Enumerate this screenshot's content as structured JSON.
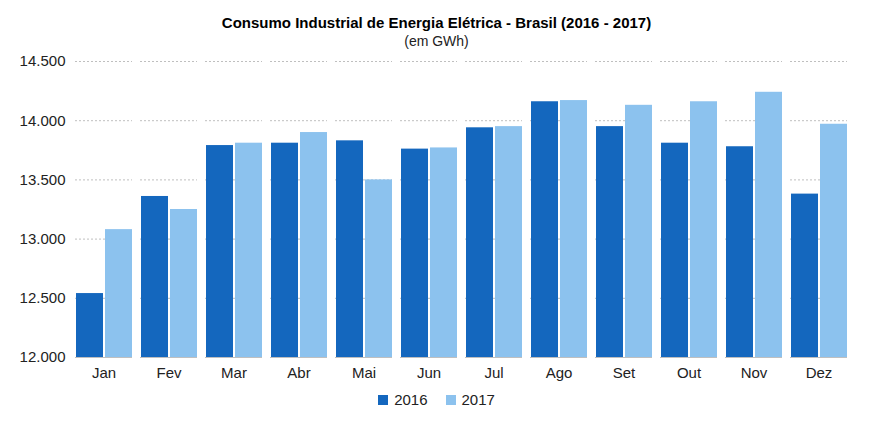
{
  "chart_data": {
    "type": "bar",
    "title": "Consumo Industrial de Energia Elétrica - Brasil (2016 - 2017)",
    "subtitle": "(em GWh)",
    "categories": [
      "Jan",
      "Fev",
      "Mar",
      "Abr",
      "Mai",
      "Jun",
      "Jul",
      "Ago",
      "Set",
      "Out",
      "Nov",
      "Dez"
    ],
    "series": [
      {
        "name": "2016",
        "color": "#1467be",
        "values": [
          12540,
          13360,
          13790,
          13810,
          13830,
          13760,
          13940,
          14160,
          13950,
          13810,
          13780,
          13380
        ]
      },
      {
        "name": "2017",
        "color": "#8cc2ee",
        "values": [
          13080,
          13250,
          13810,
          13900,
          13500,
          13770,
          13950,
          14170,
          14130,
          14160,
          14240,
          13970
        ]
      }
    ],
    "ylim": [
      12000,
      14500
    ],
    "yticks": [
      {
        "value": 12000,
        "label": "12.000"
      },
      {
        "value": 12500,
        "label": "12.500"
      },
      {
        "value": 13000,
        "label": "13.000"
      },
      {
        "value": 13500,
        "label": "13.500"
      },
      {
        "value": 14000,
        "label": "14.000"
      },
      {
        "value": 14500,
        "label": "14.500"
      }
    ],
    "grid": true,
    "legend": "bottom"
  }
}
